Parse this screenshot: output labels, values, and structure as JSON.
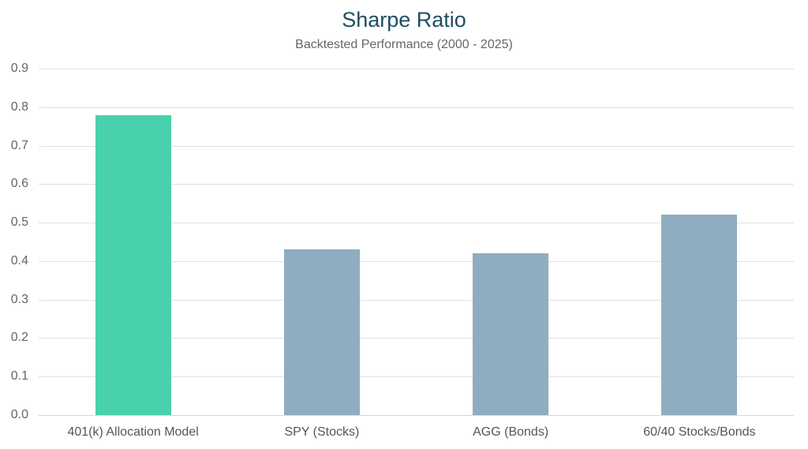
{
  "chart_data": {
    "type": "bar",
    "title": "Sharpe Ratio",
    "subtitle": "Backtested Performance (2000 - 2025)",
    "xlabel": "",
    "ylabel": "",
    "categories": [
      "401(k) Allocation Model",
      "SPY (Stocks)",
      "AGG (Bonds)",
      "60/40 Stocks/Bonds"
    ],
    "values": [
      0.78,
      0.43,
      0.42,
      0.52
    ],
    "colors": [
      "#48d1ac",
      "#8eadc1",
      "#8eadc1",
      "#8eadc1"
    ],
    "ylim": [
      0,
      0.9
    ],
    "yticks": [
      "0.0",
      "0.1",
      "0.2",
      "0.3",
      "0.4",
      "0.5",
      "0.6",
      "0.7",
      "0.8",
      "0.9"
    ],
    "grid": true,
    "legend": null
  }
}
